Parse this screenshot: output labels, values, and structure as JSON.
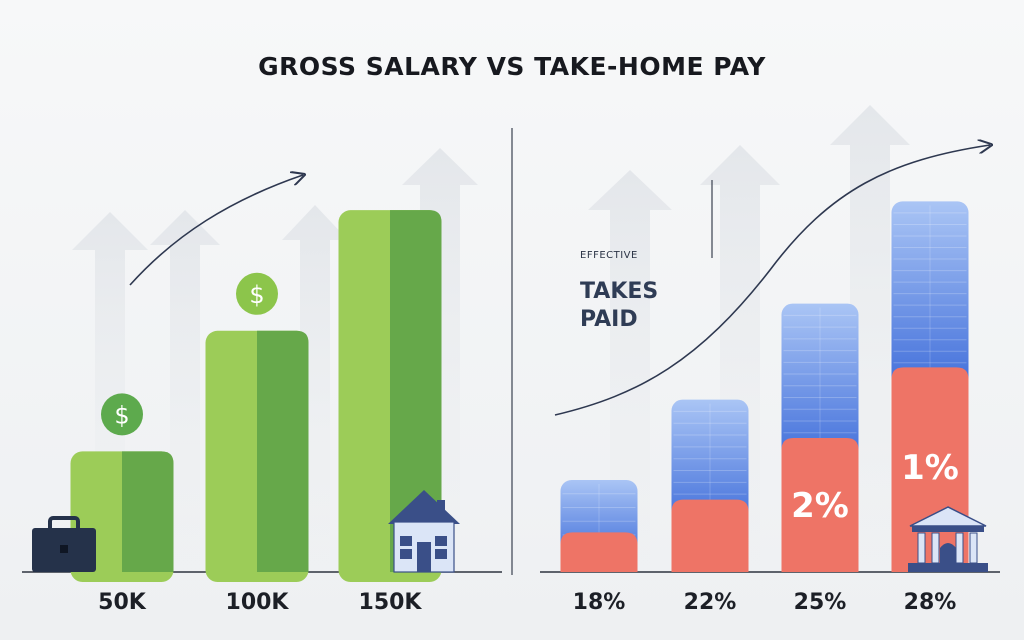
{
  "title": "GROSS SALARY VS TAKE-HOME PAY",
  "colors": {
    "green_light": "#9ccc58",
    "green_dark": "#66a84a",
    "blue_top": "#a9c4f4",
    "blue_bottom": "#3f6ddb",
    "red": "#ee7466",
    "divider": "#3a4150",
    "navy": "#25324a"
  },
  "icons": {
    "coin": "dollar-coin-icon",
    "briefcase": "briefcase-icon",
    "house": "house-icon",
    "bank": "bank-icon"
  },
  "annotations": {
    "effective": "EFFECTIVE",
    "takes_line1": "TAKES",
    "takes_line2": "PAID",
    "coin_symbol": "$"
  },
  "chart_data": [
    {
      "type": "bar",
      "title": "",
      "categories": [
        "50K",
        "100K",
        "150K"
      ],
      "values": [
        50,
        100,
        150
      ],
      "ylim": [
        0,
        165
      ],
      "series": [
        {
          "values": [
            50,
            100,
            150
          ]
        }
      ]
    },
    {
      "type": "bar",
      "categories": [
        "18%",
        "22%",
        "25%",
        "28%"
      ],
      "stacked": true,
      "series": [
        {
          "values": [
            18,
            22,
            25,
            28
          ]
        },
        {
          "values": [
            17,
            30,
            37,
            45
          ]
        }
      ],
      "data_labels": [
        "",
        "",
        "2%",
        "1%"
      ],
      "ylim": [
        0,
        90
      ]
    }
  ]
}
